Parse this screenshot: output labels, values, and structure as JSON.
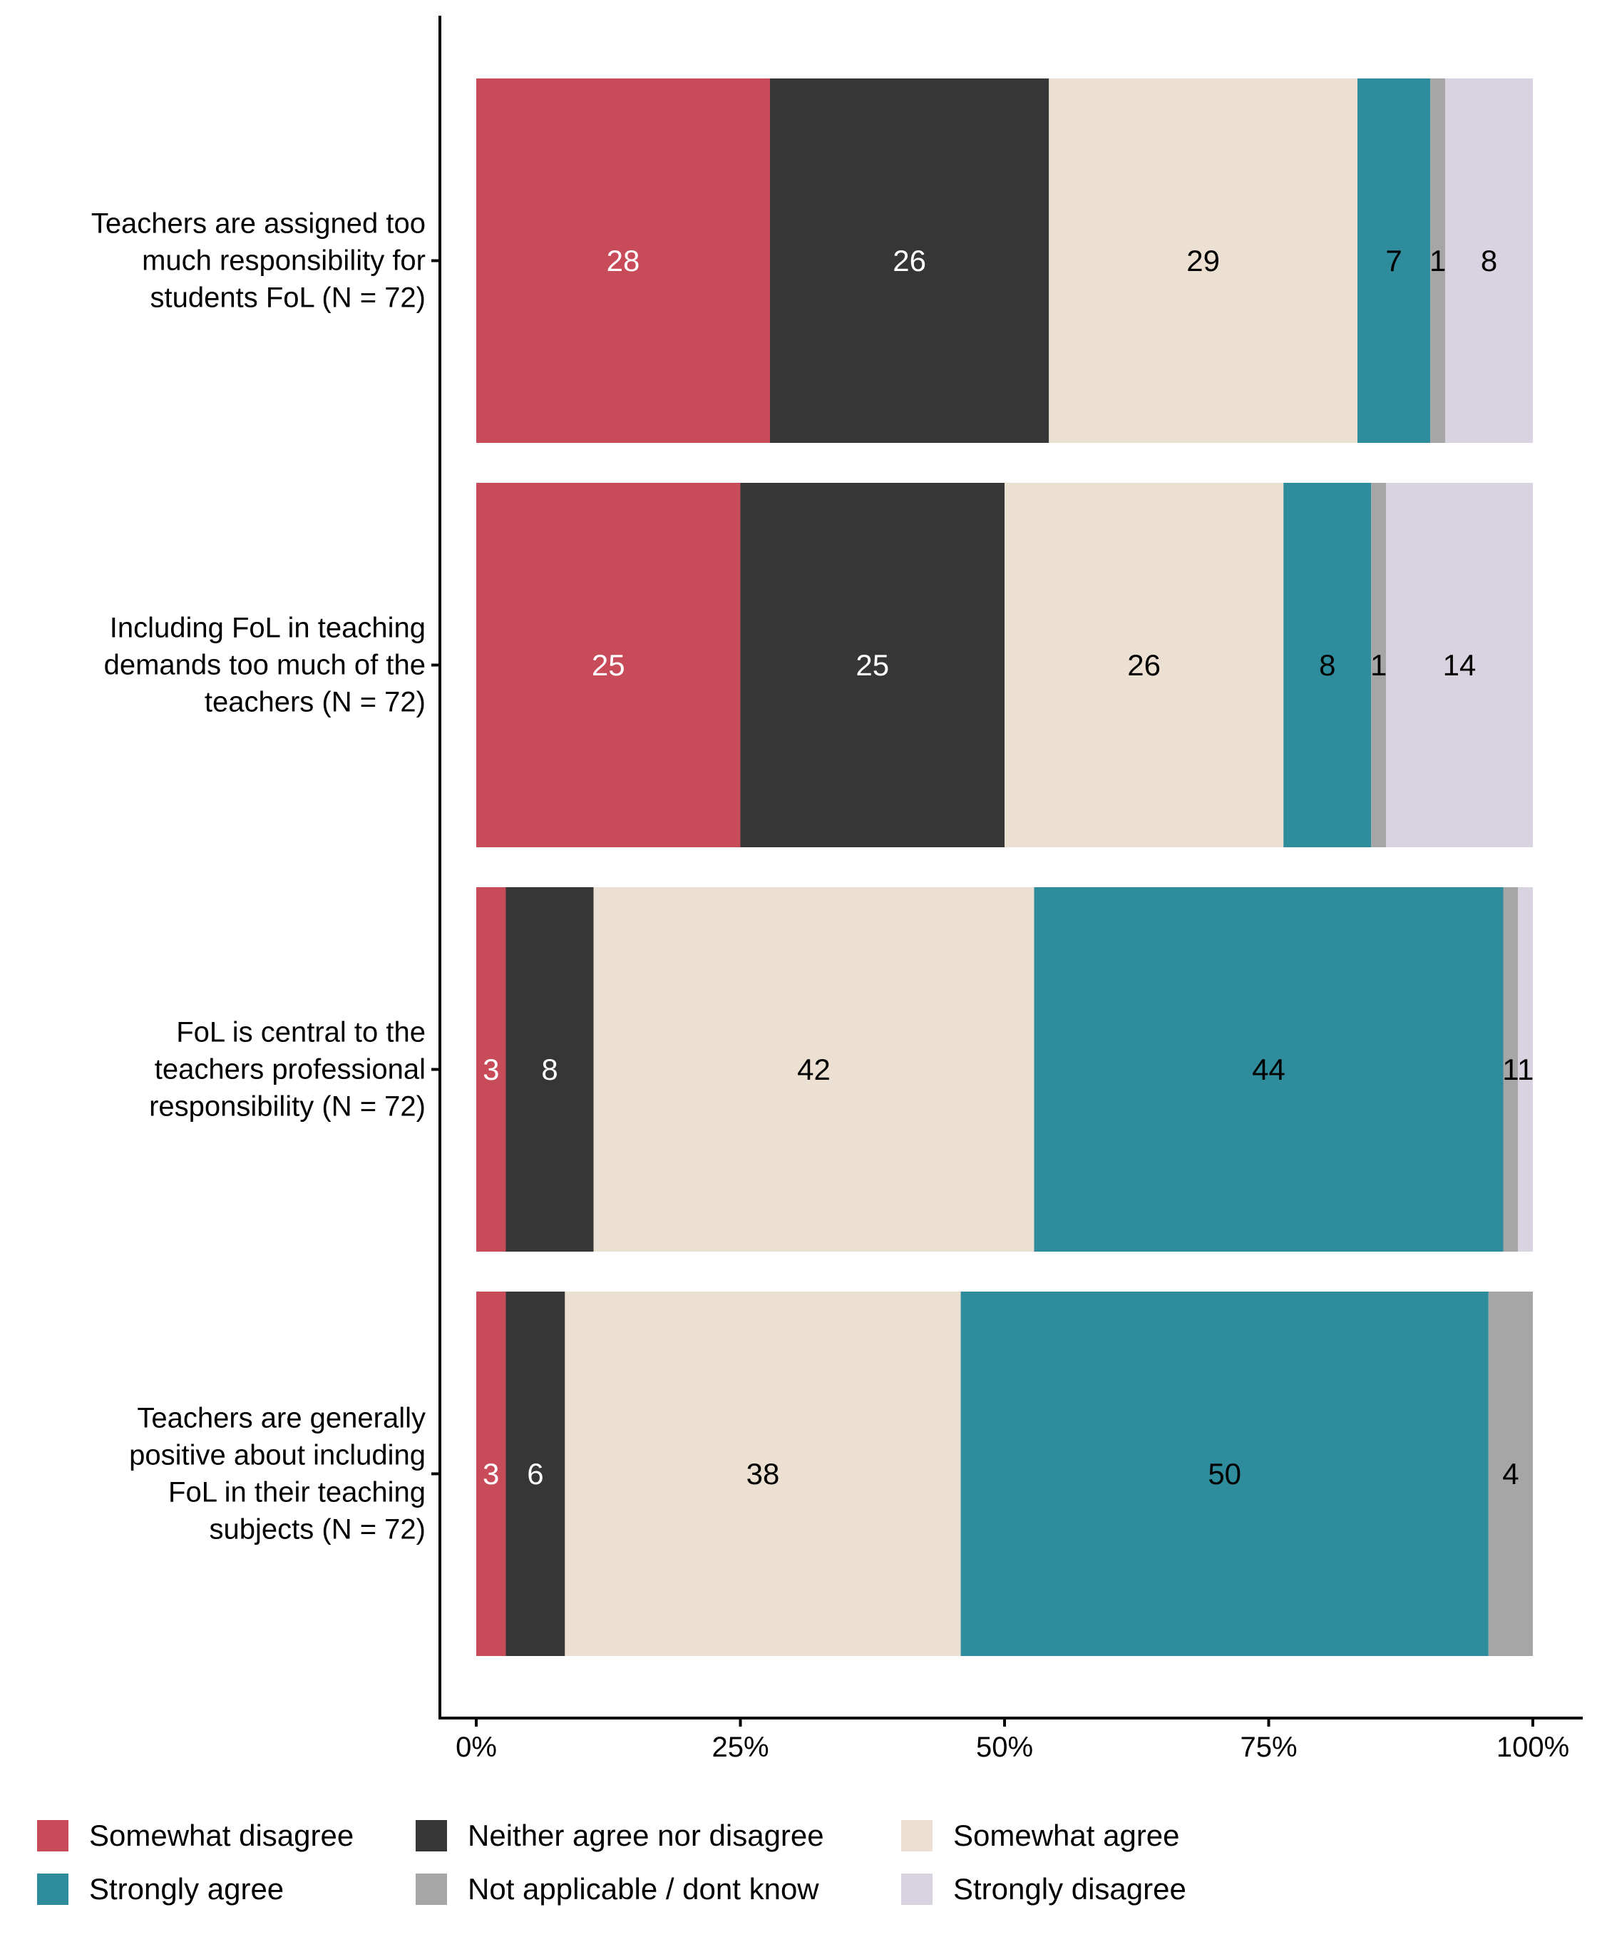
{
  "chart_data": {
    "type": "bar",
    "orientation": "horizontal",
    "stacked": true,
    "title": "",
    "xlabel": "",
    "ylabel": "",
    "xlim": [
      0,
      100
    ],
    "x_ticks": [
      "0%",
      "25%",
      "50%",
      "75%",
      "100%"
    ],
    "x_tick_values": [
      0,
      25,
      50,
      75,
      100
    ],
    "grid": false,
    "legend_position": "bottom",
    "categories": [
      [
        "Teachers are assigned too",
        "much responsibility for",
        "students FoL (N = 72)"
      ],
      [
        "Including FoL in teaching",
        "demands too much of the",
        "teachers (N = 72)"
      ],
      [
        "FoL is central to the",
        "teachers professional",
        "responsibility (N = 72)"
      ],
      [
        "Teachers are generally",
        "positive about including",
        "FoL in their teaching",
        "subjects (N = 72)"
      ]
    ],
    "series": [
      {
        "name": "Somewhat disagree",
        "color": "#C84B5A",
        "label_color": "#FFFFFF",
        "values": [
          27.8,
          25.0,
          2.8,
          2.8
        ],
        "labels": [
          "28",
          "25",
          "3",
          "3"
        ]
      },
      {
        "name": "Neither agree nor disagree",
        "color": "#363636",
        "label_color": "#FFFFFF",
        "values": [
          26.4,
          25.0,
          8.3,
          5.6
        ],
        "labels": [
          "26",
          "25",
          "8",
          "6"
        ]
      },
      {
        "name": "Somewhat agree",
        "color": "#EBE0D1",
        "label_color": "#000000",
        "values": [
          29.2,
          26.4,
          41.7,
          37.5
        ],
        "labels": [
          "29",
          "26",
          "42",
          "38"
        ]
      },
      {
        "name": "Strongly agree",
        "color": "#2E8C9D",
        "label_color": "#000000",
        "values": [
          6.9,
          8.3,
          44.4,
          50.0
        ],
        "labels": [
          "7",
          "8",
          "44",
          "50"
        ]
      },
      {
        "name": "Not applicable / dont know",
        "color": "#A6A6A6",
        "label_color": "#000000",
        "values": [
          1.4,
          1.4,
          1.4,
          4.2
        ],
        "labels": [
          "1",
          "1",
          "1",
          "4"
        ]
      },
      {
        "name": "Strongly disagree",
        "color": "#D9D2E0",
        "label_color": "#000000",
        "values": [
          8.3,
          13.9,
          1.4,
          0
        ],
        "labels": [
          "8",
          "14",
          "1",
          ""
        ]
      }
    ]
  },
  "legend": {
    "items": [
      {
        "label": "Somewhat disagree",
        "color": "#C84B5A"
      },
      {
        "label": "Neither agree nor disagree",
        "color": "#363636"
      },
      {
        "label": "Somewhat agree",
        "color": "#EBE0D1"
      },
      {
        "label": "Strongly agree",
        "color": "#2E8C9D"
      },
      {
        "label": "Not applicable / dont know",
        "color": "#A6A6A6"
      },
      {
        "label": "Strongly disagree",
        "color": "#D9D2E0"
      }
    ]
  }
}
